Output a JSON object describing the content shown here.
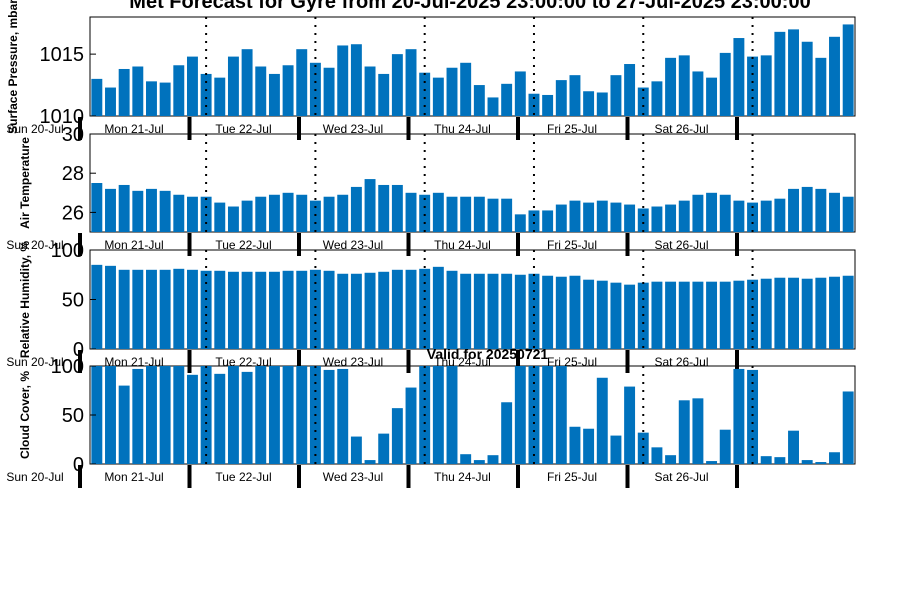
{
  "figure": {
    "title": "Met Forecast for Gyre from 20-Jul-2025 23:00:00 to 27-Jul-2025 23:00:00",
    "bar_color": "#0072bd"
  },
  "chart_data": [
    {
      "type": "bar",
      "ylabel": "Surface Pressure, mbar",
      "ylim": [
        1010,
        1018
      ],
      "yticks": [
        1010,
        1015
      ],
      "subtitle": "",
      "day_labels": [
        "Sun 20-Jul",
        "Mon 21-Jul",
        "Tue 22-Jul",
        "Wed 23-Jul",
        "Thu 24-Jul",
        "Fri 25-Jul",
        "Sat 26-Jul"
      ],
      "values": [
        1013.0,
        1012.3,
        1013.8,
        1014.0,
        1012.8,
        1012.7,
        1014.1,
        1014.8,
        1013.4,
        1013.1,
        1014.8,
        1015.4,
        1014.0,
        1013.4,
        1014.1,
        1015.4,
        1014.3,
        1013.9,
        1015.7,
        1015.8,
        1014.0,
        1013.4,
        1015.0,
        1015.4,
        1013.5,
        1013.1,
        1013.9,
        1014.3,
        1012.5,
        1011.5,
        1012.6,
        1013.6,
        1011.8,
        1011.7,
        1012.9,
        1013.3,
        1012.0,
        1011.9,
        1013.3,
        1014.2,
        1012.3,
        1012.8,
        1014.7,
        1014.9,
        1013.6,
        1013.1,
        1015.1,
        1016.3,
        1014.8,
        1014.9,
        1016.8,
        1017.0,
        1016.0,
        1014.7,
        1016.4,
        1017.4
      ]
    },
    {
      "type": "bar",
      "ylabel": "Air Temperature",
      "ylim": [
        25,
        30
      ],
      "yticks": [
        26,
        28,
        30
      ],
      "subtitle": "",
      "day_labels": [
        "Sun 20-Jul",
        "Mon 21-Jul",
        "Tue 22-Jul",
        "Wed 23-Jul",
        "Thu 24-Jul",
        "Fri 25-Jul",
        "Sat 26-Jul"
      ],
      "values": [
        27.5,
        27.2,
        27.4,
        27.1,
        27.2,
        27.1,
        26.9,
        26.8,
        26.8,
        26.5,
        26.3,
        26.6,
        26.8,
        26.9,
        27.0,
        26.9,
        26.6,
        26.8,
        26.9,
        27.3,
        27.7,
        27.4,
        27.4,
        27.0,
        26.9,
        27.0,
        26.8,
        26.8,
        26.8,
        26.7,
        26.7,
        25.9,
        26.1,
        26.1,
        26.4,
        26.6,
        26.5,
        26.6,
        26.5,
        26.4,
        26.2,
        26.3,
        26.4,
        26.6,
        26.9,
        27.0,
        26.9,
        26.6,
        26.5,
        26.6,
        26.7,
        27.2,
        27.3,
        27.2,
        27.0,
        26.8
      ]
    },
    {
      "type": "bar",
      "ylabel": "Relative Humidity, %",
      "ylim": [
        0,
        100
      ],
      "yticks": [
        0,
        50,
        100
      ],
      "subtitle": "",
      "day_labels": [
        "Sun 20-Jul",
        "Mon 21-Jul",
        "Tue 22-Jul",
        "Wed 23-Jul",
        "Thu 24-Jul",
        "Fri 25-Jul",
        "Sat 26-Jul"
      ],
      "values": [
        85,
        84,
        80,
        80,
        80,
        80,
        81,
        80,
        79,
        79,
        78,
        78,
        78,
        78,
        79,
        79,
        80,
        79,
        76,
        76,
        77,
        78,
        80,
        80,
        81,
        83,
        79,
        76,
        76,
        76,
        76,
        75,
        76,
        74,
        73,
        74,
        70,
        69,
        67,
        65,
        67,
        68,
        68,
        68,
        68,
        68,
        68,
        69,
        70,
        71,
        72,
        72,
        71,
        72,
        73,
        74
      ]
    },
    {
      "type": "bar",
      "ylabel": "Cloud Cover, %",
      "ylim": [
        0,
        100
      ],
      "yticks": [
        0,
        50,
        100
      ],
      "subtitle": "Valid for 20250721",
      "day_labels": [
        "Sun 20-Jul",
        "Mon 21-Jul",
        "Tue 22-Jul",
        "Wed 23-Jul",
        "Thu 24-Jul",
        "Fri 25-Jul",
        "Sat 26-Jul"
      ],
      "values": [
        100,
        100,
        80,
        97,
        100,
        100,
        100,
        91,
        100,
        92,
        100,
        94,
        100,
        100,
        100,
        100,
        100,
        96,
        97,
        28,
        4,
        31,
        57,
        78,
        100,
        100,
        100,
        10,
        4,
        9,
        63,
        100,
        100,
        100,
        100,
        38,
        36,
        88,
        29,
        79,
        32,
        17,
        9,
        65,
        67,
        3,
        35,
        97,
        96,
        8,
        7,
        34,
        4,
        2,
        12,
        74
      ]
    }
  ]
}
